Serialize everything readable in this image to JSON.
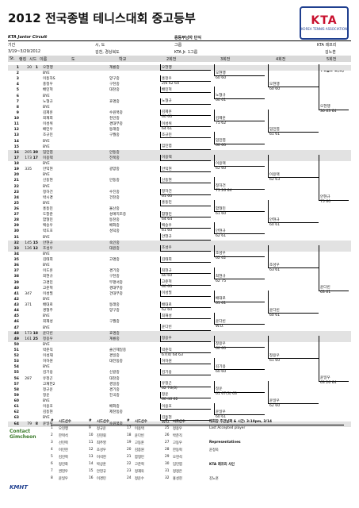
{
  "title": "2012 전국종별 테니스대회 중고등부",
  "logo": {
    "main": "KTA",
    "sub": "KOREA TENNIS ASSOCIATION"
  },
  "circuit": "KTA Junior Circuit",
  "event_label": "중등부남자 단식",
  "info_labels": {
    "week": "기간",
    "city": "시, 도",
    "grade": "그룹",
    "referee": "KTA 레프리"
  },
  "info_values": {
    "week": "3/19~3/29/2012",
    "city": "김천, 경상북도",
    "grade": "KTA Jr. 1그룹",
    "referee": "김노훈"
  },
  "columns": {
    "st": "St.",
    "rank": "랭킹",
    "seed": "시드",
    "name": "이름",
    "state": "도",
    "club": "학교",
    "r2": "2회전",
    "r3": "3회전",
    "r4": "4회전",
    "r5": "5회전"
  },
  "page_label": "Page 1(5)",
  "rows": [
    {
      "n": "1",
      "seed": "20",
      "seed2": "1",
      "name": "오현행",
      "club": "계룡중"
    },
    {
      "n": "2",
      "seed": "",
      "seed2": "",
      "name": "BYE",
      "club": ""
    },
    {
      "n": "3",
      "seed": "",
      "seed2": "",
      "name": "이동하S",
      "club": "양구중"
    },
    {
      "n": "4",
      "seed": "",
      "seed2": "",
      "name": "홍정우",
      "club": "구천중"
    },
    {
      "n": "5",
      "seed": "",
      "seed2": "",
      "name": "배민혁",
      "club": "대천중"
    },
    {
      "n": "6",
      "seed": "",
      "seed2": "",
      "name": "BYE",
      "club": ""
    },
    {
      "n": "7",
      "seed": "",
      "seed2": "",
      "name": "노형규",
      "club": "효명중"
    },
    {
      "n": "8",
      "seed": "",
      "seed2": "",
      "name": "BYE",
      "club": ""
    },
    {
      "n": "9",
      "seed": "",
      "seed2": "",
      "name": "김제훈",
      "club": "수원북중"
    },
    {
      "n": "10",
      "seed": "",
      "seed2": "",
      "name": "최재희",
      "club": "천안중"
    },
    {
      "n": "11",
      "seed": "",
      "seed2": "",
      "name": "이성위",
      "club": "경대부중"
    },
    {
      "n": "12",
      "seed": "",
      "seed2": "",
      "name": "배민우",
      "club": "동래중"
    },
    {
      "n": "13",
      "seed": "",
      "seed2": "",
      "name": "조규민",
      "club": "구월중"
    },
    {
      "n": "14",
      "seed": "",
      "seed2": "",
      "name": "BYE",
      "club": ""
    },
    {
      "n": "15",
      "seed": "",
      "seed2": "",
      "name": "BYE",
      "club": ""
    },
    {
      "n": "16",
      "seed": "205",
      "seed2": "30",
      "name": "임민엽",
      "club": "안동중"
    },
    {
      "n": "17",
      "seed": "173",
      "seed2": "17",
      "name": "이용택",
      "club": "전북중"
    },
    {
      "n": "18",
      "seed": "",
      "seed2": "",
      "name": "BYE",
      "club": ""
    },
    {
      "n": "19",
      "seed": "335",
      "seed2": "",
      "name": "안익현",
      "club": "광양중"
    },
    {
      "n": "20",
      "seed": "",
      "seed2": "",
      "name": "BYE",
      "club": ""
    },
    {
      "n": "21",
      "seed": "",
      "seed2": "",
      "name": "신동현",
      "club": "안동중"
    },
    {
      "n": "22",
      "seed": "",
      "seed2": "",
      "name": "BYE",
      "club": ""
    },
    {
      "n": "23",
      "seed": "",
      "seed2": "",
      "name": "정하건",
      "club": "수진중"
    },
    {
      "n": "24",
      "seed": "",
      "seed2": "",
      "name": "박시경",
      "club": "건천중"
    },
    {
      "n": "25",
      "seed": "",
      "seed2": "",
      "name": "BYE",
      "club": ""
    },
    {
      "n": "26",
      "seed": "",
      "seed2": "",
      "name": "홍동민",
      "club": "울산중"
    },
    {
      "n": "27",
      "seed": "",
      "seed2": "",
      "name": "도창준",
      "club": "성애지조중"
    },
    {
      "n": "28",
      "seed": "",
      "seed2": "",
      "name": "함형민",
      "club": "동천중"
    },
    {
      "n": "29",
      "seed": "",
      "seed2": "",
      "name": "백승우",
      "club": "배화중"
    },
    {
      "n": "30",
      "seed": "",
      "seed2": "",
      "name": "박도호",
      "club": "성덕중"
    },
    {
      "n": "31",
      "seed": "",
      "seed2": "",
      "name": "BYE",
      "club": ""
    },
    {
      "n": "32",
      "seed": "145",
      "seed2": "15",
      "name": "안현규",
      "club": "숙인중"
    },
    {
      "n": "33",
      "seed": "126",
      "seed2": "12",
      "name": "조성우",
      "club": "대원중"
    },
    {
      "n": "34",
      "seed": "",
      "seed2": "",
      "name": "BYE",
      "club": ""
    },
    {
      "n": "35",
      "seed": "",
      "seed2": "",
      "name": "김태희",
      "club": "고명중"
    },
    {
      "n": "36",
      "seed": "",
      "seed2": "",
      "name": "BYE",
      "club": ""
    },
    {
      "n": "37",
      "seed": "",
      "seed2": "",
      "name": "이도훈",
      "club": "경기중"
    },
    {
      "n": "38",
      "seed": "",
      "seed2": "",
      "name": "최현규",
      "club": "구천중"
    },
    {
      "n": "39",
      "seed": "",
      "seed2": "",
      "name": "고경민",
      "club": "부평서중"
    },
    {
      "n": "40",
      "seed": "",
      "seed2": "",
      "name": "고준혁",
      "club": "경대부중"
    },
    {
      "n": "41",
      "seed": "347",
      "seed2": "",
      "name": "이성필",
      "club": "건대부중"
    },
    {
      "n": "42",
      "seed": "",
      "seed2": "",
      "name": "BYE",
      "club": ""
    },
    {
      "n": "43",
      "seed": "371",
      "seed2": "",
      "name": "배대로",
      "club": "동래중"
    },
    {
      "n": "44",
      "seed": "",
      "seed2": "",
      "name": "경형주",
      "club": "양구중"
    },
    {
      "n": "45",
      "seed": "",
      "seed2": "",
      "name": "BYE",
      "club": ""
    },
    {
      "n": "46",
      "seed": "",
      "seed2": "",
      "name": "최재성",
      "club": "구월중"
    },
    {
      "n": "47",
      "seed": "",
      "seed2": "",
      "name": "BYE",
      "club": ""
    },
    {
      "n": "48",
      "seed": "173",
      "seed2": "18",
      "name": "윤다빈",
      "club": "효명중"
    },
    {
      "n": "49",
      "seed": "161",
      "seed2": "25",
      "name": "정용우",
      "club": "계룡중"
    },
    {
      "n": "50",
      "seed": "",
      "seed2": "",
      "name": "BYE",
      "club": ""
    },
    {
      "n": "51",
      "seed": "",
      "seed2": "",
      "name": "박준직",
      "club": "솔인제일중"
    },
    {
      "n": "52",
      "seed": "",
      "seed2": "",
      "name": "이성재",
      "club": "경일중"
    },
    {
      "n": "53",
      "seed": "",
      "seed2": "",
      "name": "허하원",
      "club": "대전동중"
    },
    {
      "n": "54",
      "seed": "",
      "seed2": "",
      "name": "BYE",
      "club": ""
    },
    {
      "n": "55",
      "seed": "",
      "seed2": "",
      "name": "김기용",
      "club": "신갈중"
    },
    {
      "n": "56",
      "seed": "287",
      "seed2": "",
      "name": "유정곤",
      "club": "대천중"
    },
    {
      "n": "57",
      "seed": "",
      "seed2": "",
      "name": "고재헌2",
      "club": "경일중"
    },
    {
      "n": "58",
      "seed": "",
      "seed2": "",
      "name": "정규운",
      "club": "경기중"
    },
    {
      "n": "59",
      "seed": "",
      "seed2": "",
      "name": "정운",
      "club": "진곡중"
    },
    {
      "n": "60",
      "seed": "",
      "seed2": "",
      "name": "BYE",
      "club": ""
    },
    {
      "n": "61",
      "seed": "",
      "seed2": "",
      "name": "이용호",
      "club": "배화중"
    },
    {
      "n": "62",
      "seed": "",
      "seed2": "",
      "name": "김동현",
      "club": "제천동중"
    },
    {
      "n": "63",
      "seed": "",
      "seed2": "",
      "name": "BYE",
      "club": ""
    },
    {
      "n": "64",
      "seed": "79",
      "seed2": "8",
      "name": "윤일우",
      "club": "수원북중"
    }
  ],
  "r2": [
    {
      "name": "오현행",
      "score": ""
    },
    {
      "name": "홍정우",
      "score": "2/6 62 64"
    },
    {
      "name": "배민혁",
      "score": ""
    },
    {
      "name": "노형규",
      "score": ""
    },
    {
      "name": "김제훈",
      "score": "60 60"
    },
    {
      "name": "이성위",
      "score": "64 61"
    },
    {
      "name": "조규민",
      "score": ""
    },
    {
      "name": "임민엽",
      "score": ""
    },
    {
      "name": "이용택",
      "score": ""
    },
    {
      "name": "안익현",
      "score": ""
    },
    {
      "name": "신동현",
      "score": ""
    },
    {
      "name": "정하건",
      "score": "61 60"
    },
    {
      "name": "홍동민",
      "score": ""
    },
    {
      "name": "함형민",
      "score": "64 64"
    },
    {
      "name": "백승우",
      "score": "61 60"
    },
    {
      "name": "안현규",
      "score": ""
    },
    {
      "name": "조성우",
      "score": ""
    },
    {
      "name": "김태희",
      "score": ""
    },
    {
      "name": "최현규",
      "score": "60 60"
    },
    {
      "name": "고준혁",
      "score": "60 60"
    },
    {
      "name": "이성필",
      "score": ""
    },
    {
      "name": "배대로",
      "score": "62 60"
    },
    {
      "name": "최재성",
      "score": ""
    },
    {
      "name": "윤다빈",
      "score": ""
    },
    {
      "name": "정용우",
      "score": ""
    },
    {
      "name": "박준직",
      "score": "67(4) 64 63"
    },
    {
      "name": "허하원",
      "score": ""
    },
    {
      "name": "김기용",
      "score": ""
    },
    {
      "name": "유정곤",
      "score": "62 76(6)"
    },
    {
      "name": "정운",
      "score": "60 46 62"
    },
    {
      "name": "이용호",
      "score": ""
    },
    {
      "name": "김동현",
      "score": "W.O."
    }
  ],
  "r3": [
    {
      "name": "오현행",
      "score": "60 60"
    },
    {
      "name": "노형규",
      "score": "60 61"
    },
    {
      "name": "김제훈",
      "score": "75 62"
    },
    {
      "name": "임민엽",
      "score": "60 60"
    },
    {
      "name": "이용택",
      "score": "62 60"
    },
    {
      "name": "정하건",
      "score": "75 26 64"
    },
    {
      "name": "함형민",
      "score": "61 60"
    },
    {
      "name": "안현규",
      "score": "62 61"
    },
    {
      "name": "조성우",
      "score": "62 62"
    },
    {
      "name": "최현규",
      "score": "62 75"
    },
    {
      "name": "배대로",
      "score": "61 61"
    },
    {
      "name": "윤다빈",
      "score": "W.O."
    },
    {
      "name": "정용우",
      "score": "60 60"
    },
    {
      "name": "김기용",
      "score": "60 60"
    },
    {
      "name": "정운",
      "score": "61 67(3) 63"
    },
    {
      "name": "윤일우",
      "score": "60 61"
    }
  ],
  "r4": [
    {
      "name": "오현행",
      "score": "60 60"
    },
    {
      "name": "임민엽",
      "score": "61 61"
    },
    {
      "name": "이용택",
      "score": "62 63"
    },
    {
      "name": "안현규",
      "score": "60 61"
    },
    {
      "name": "조성우",
      "score": "63 61"
    },
    {
      "name": "윤다빈",
      "score": "60 61"
    },
    {
      "name": "정용우",
      "score": "61 60"
    },
    {
      "name": "윤일우",
      "score": "62 60"
    }
  ],
  "r5": [
    {
      "name": "오현행",
      "score": "36 63 64"
    },
    {
      "name": "안현규",
      "score": "75 60"
    },
    {
      "name": "윤다빈",
      "score": "63 61"
    },
    {
      "name": "윤일우",
      "score": "63 26 64"
    }
  ],
  "seed_table": {
    "header": [
      "#",
      "시드선수",
      "#",
      "시드선수",
      "#",
      "시드선수",
      "#",
      "시드선수"
    ],
    "rows": [
      [
        "1",
        "오현행",
        "9",
        "정규운",
        "17",
        "이용택",
        "25",
        "정용우"
      ],
      [
        "2",
        "한혁석",
        "10",
        "진현휘",
        "18",
        "윤다빈",
        "26",
        "박준직"
      ],
      [
        "3",
        "선민혁",
        "11",
        "최주영",
        "19",
        "고동훈",
        "27",
        "고동우"
      ],
      [
        "4",
        "이민현",
        "12",
        "조성우",
        "20",
        "김종원",
        "28",
        "한동혁"
      ],
      [
        "5",
        "김진혁",
        "13",
        "이석현",
        "21",
        "함형민",
        "29",
        "오현석"
      ],
      [
        "6",
        "정진화",
        "14",
        "박상훈",
        "22",
        "고준혁",
        "30",
        "임민엽"
      ],
      [
        "7",
        "권현우",
        "15",
        "안현규",
        "23",
        "정재욱",
        "31",
        "정정은"
      ],
      [
        "8",
        "윤일우",
        "16",
        "이경민",
        "24",
        "정운수",
        "32",
        "홍성현"
      ]
    ],
    "side_title": "대회장 주관날짜 & 시간: 3:10pm, 3/14",
    "side_lines": [
      "Last Accepted player",
      "",
      "Representatives",
      "윤정욱",
      "",
      "KTA 레프리 사인",
      "",
      "김노훈"
    ]
  },
  "sponsor1": "Contact Gimcheon",
  "sponsor2": "KMHT"
}
